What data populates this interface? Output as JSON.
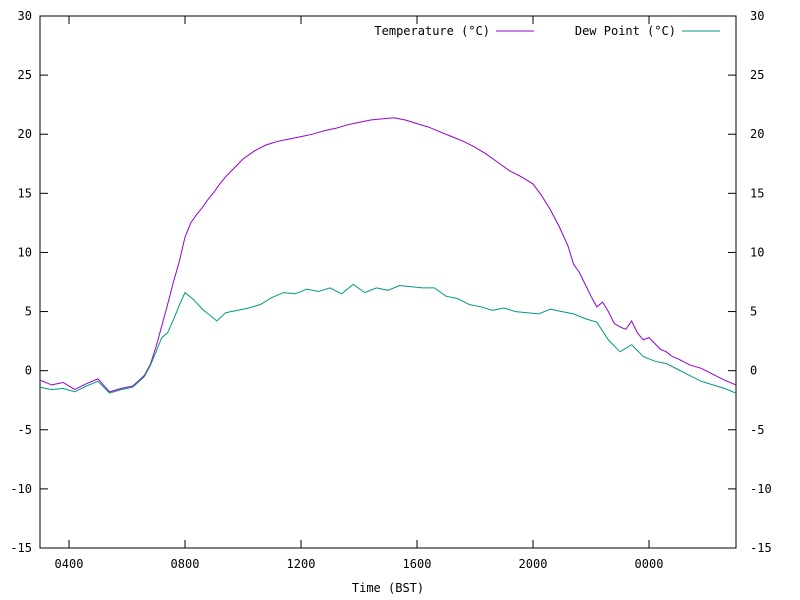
{
  "chart_data": {
    "type": "line",
    "xlabel": "Time (BST)",
    "ylabel": "",
    "x_unit": "hours since 03:00 BST (axis wraps past midnight)",
    "xlim": [
      3,
      27
    ],
    "ylim": [
      -15,
      30
    ],
    "y_ticks": [
      -15,
      -10,
      -5,
      0,
      5,
      10,
      15,
      20,
      25,
      30
    ],
    "x_ticks": [
      {
        "value": 4,
        "label": "0400"
      },
      {
        "value": 8,
        "label": "0800"
      },
      {
        "value": 12,
        "label": "1200"
      },
      {
        "value": 16,
        "label": "1600"
      },
      {
        "value": 20,
        "label": "2000"
      },
      {
        "value": 24,
        "label": "0000"
      }
    ],
    "grid": false,
    "legend_position": "top-right",
    "series": [
      {
        "name": "Temperature (°C)",
        "color": "#9400d3",
        "points": [
          [
            3.0,
            -0.8
          ],
          [
            3.4,
            -1.2
          ],
          [
            3.8,
            -1.0
          ],
          [
            4.2,
            -1.6
          ],
          [
            4.6,
            -1.1
          ],
          [
            5.0,
            -0.7
          ],
          [
            5.4,
            -1.8
          ],
          [
            5.8,
            -1.5
          ],
          [
            6.2,
            -1.3
          ],
          [
            6.6,
            -0.4
          ],
          [
            6.8,
            0.5
          ],
          [
            7.0,
            2.0
          ],
          [
            7.2,
            3.8
          ],
          [
            7.4,
            5.6
          ],
          [
            7.6,
            7.5
          ],
          [
            7.8,
            9.2
          ],
          [
            8.0,
            11.3
          ],
          [
            8.2,
            12.5
          ],
          [
            8.4,
            13.2
          ],
          [
            8.6,
            13.8
          ],
          [
            8.8,
            14.5
          ],
          [
            9.0,
            15.1
          ],
          [
            9.2,
            15.8
          ],
          [
            9.4,
            16.4
          ],
          [
            9.6,
            16.9
          ],
          [
            9.8,
            17.4
          ],
          [
            10.0,
            17.9
          ],
          [
            10.4,
            18.6
          ],
          [
            10.8,
            19.1
          ],
          [
            11.2,
            19.4
          ],
          [
            11.6,
            19.6
          ],
          [
            12.0,
            19.8
          ],
          [
            12.4,
            20.0
          ],
          [
            12.8,
            20.3
          ],
          [
            13.2,
            20.5
          ],
          [
            13.6,
            20.8
          ],
          [
            14.0,
            21.0
          ],
          [
            14.4,
            21.2
          ],
          [
            14.8,
            21.3
          ],
          [
            15.2,
            21.4
          ],
          [
            15.6,
            21.2
          ],
          [
            16.0,
            20.9
          ],
          [
            16.4,
            20.6
          ],
          [
            16.8,
            20.2
          ],
          [
            17.2,
            19.8
          ],
          [
            17.6,
            19.4
          ],
          [
            18.0,
            18.9
          ],
          [
            18.4,
            18.3
          ],
          [
            18.8,
            17.6
          ],
          [
            19.2,
            16.9
          ],
          [
            19.6,
            16.4
          ],
          [
            20.0,
            15.8
          ],
          [
            20.3,
            14.8
          ],
          [
            20.6,
            13.6
          ],
          [
            20.9,
            12.2
          ],
          [
            21.2,
            10.6
          ],
          [
            21.4,
            9.0
          ],
          [
            21.6,
            8.3
          ],
          [
            21.8,
            7.3
          ],
          [
            22.0,
            6.3
          ],
          [
            22.2,
            5.4
          ],
          [
            22.4,
            5.8
          ],
          [
            22.6,
            5.0
          ],
          [
            22.8,
            4.0
          ],
          [
            23.0,
            3.7
          ],
          [
            23.2,
            3.5
          ],
          [
            23.4,
            4.2
          ],
          [
            23.6,
            3.2
          ],
          [
            23.8,
            2.6
          ],
          [
            24.0,
            2.8
          ],
          [
            24.2,
            2.3
          ],
          [
            24.4,
            1.8
          ],
          [
            24.6,
            1.6
          ],
          [
            24.8,
            1.2
          ],
          [
            25.0,
            1.0
          ],
          [
            25.4,
            0.5
          ],
          [
            25.8,
            0.2
          ],
          [
            26.2,
            -0.3
          ],
          [
            26.6,
            -0.8
          ],
          [
            27.0,
            -1.2
          ]
        ]
      },
      {
        "name": "Dew Point (°C)",
        "color": "#009a80",
        "points": [
          [
            3.0,
            -1.4
          ],
          [
            3.4,
            -1.6
          ],
          [
            3.8,
            -1.5
          ],
          [
            4.2,
            -1.8
          ],
          [
            4.6,
            -1.3
          ],
          [
            5.0,
            -0.9
          ],
          [
            5.4,
            -1.9
          ],
          [
            5.8,
            -1.6
          ],
          [
            6.2,
            -1.4
          ],
          [
            6.6,
            -0.5
          ],
          [
            6.8,
            0.4
          ],
          [
            7.0,
            1.6
          ],
          [
            7.2,
            2.8
          ],
          [
            7.4,
            3.2
          ],
          [
            7.6,
            4.3
          ],
          [
            7.8,
            5.5
          ],
          [
            8.0,
            6.6
          ],
          [
            8.3,
            6.0
          ],
          [
            8.6,
            5.2
          ],
          [
            8.9,
            4.6
          ],
          [
            9.1,
            4.2
          ],
          [
            9.4,
            4.9
          ],
          [
            9.8,
            5.1
          ],
          [
            10.2,
            5.3
          ],
          [
            10.6,
            5.6
          ],
          [
            11.0,
            6.2
          ],
          [
            11.4,
            6.6
          ],
          [
            11.8,
            6.5
          ],
          [
            12.2,
            6.9
          ],
          [
            12.6,
            6.7
          ],
          [
            13.0,
            7.0
          ],
          [
            13.4,
            6.5
          ],
          [
            13.8,
            7.3
          ],
          [
            14.2,
            6.6
          ],
          [
            14.6,
            7.0
          ],
          [
            15.0,
            6.8
          ],
          [
            15.4,
            7.2
          ],
          [
            15.8,
            7.1
          ],
          [
            16.2,
            7.0
          ],
          [
            16.6,
            7.0
          ],
          [
            17.0,
            6.3
          ],
          [
            17.4,
            6.1
          ],
          [
            17.8,
            5.6
          ],
          [
            18.2,
            5.4
          ],
          [
            18.6,
            5.1
          ],
          [
            19.0,
            5.3
          ],
          [
            19.4,
            5.0
          ],
          [
            19.8,
            4.9
          ],
          [
            20.2,
            4.8
          ],
          [
            20.6,
            5.2
          ],
          [
            21.0,
            5.0
          ],
          [
            21.4,
            4.8
          ],
          [
            21.8,
            4.4
          ],
          [
            22.2,
            4.1
          ],
          [
            22.6,
            2.6
          ],
          [
            23.0,
            1.6
          ],
          [
            23.4,
            2.2
          ],
          [
            23.8,
            1.2
          ],
          [
            24.2,
            0.8
          ],
          [
            24.6,
            0.6
          ],
          [
            25.0,
            0.1
          ],
          [
            25.4,
            -0.4
          ],
          [
            25.8,
            -0.9
          ],
          [
            26.2,
            -1.2
          ],
          [
            26.6,
            -1.5
          ],
          [
            27.0,
            -1.9
          ]
        ]
      }
    ]
  }
}
